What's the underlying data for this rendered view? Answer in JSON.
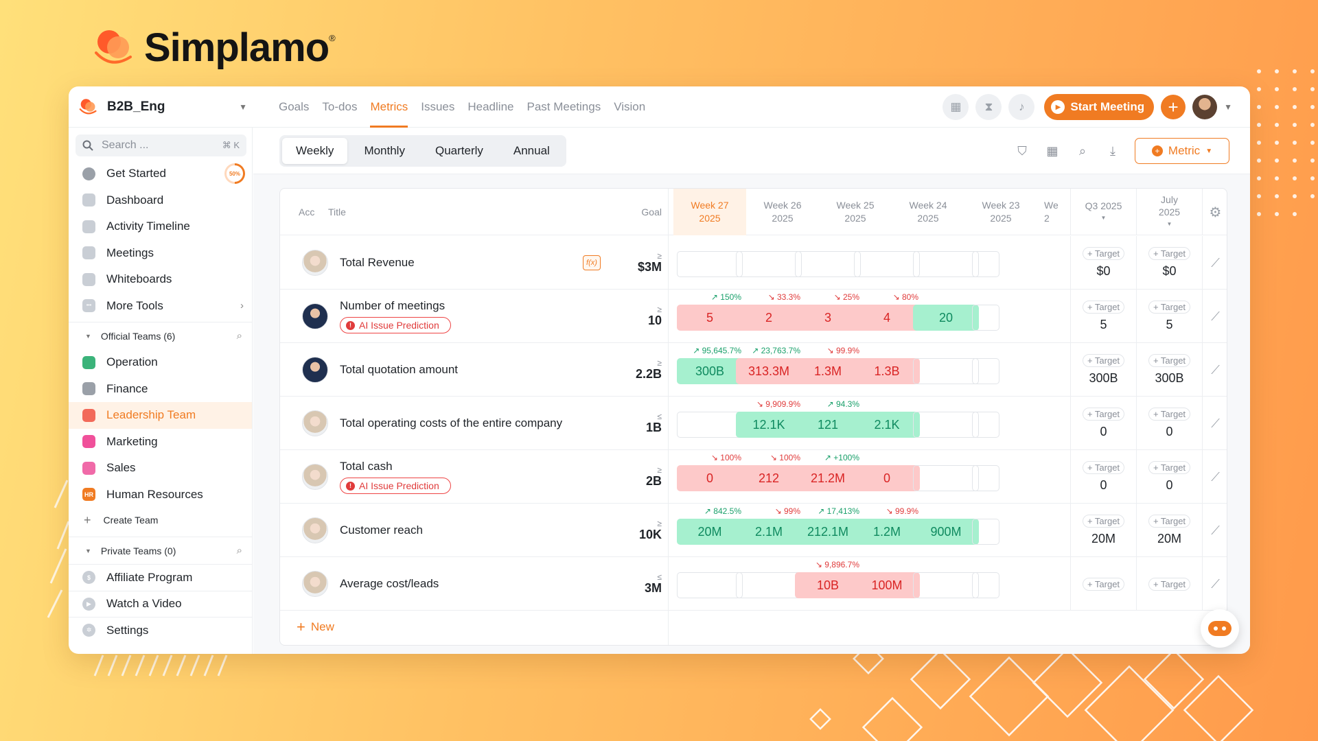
{
  "brand": {
    "name": "Simplamo",
    "reg": "®"
  },
  "workspace": {
    "name": "B2B_Eng"
  },
  "nav": [
    {
      "label": "Goals",
      "active": false
    },
    {
      "label": "To-dos",
      "active": false
    },
    {
      "label": "Metrics",
      "active": true
    },
    {
      "label": "Issues",
      "active": false
    },
    {
      "label": "Headline",
      "active": false
    },
    {
      "label": "Past Meetings",
      "active": false
    },
    {
      "label": "Vision",
      "active": false
    }
  ],
  "topbar": {
    "start_meeting": "Start Meeting",
    "plus": "+"
  },
  "sidebar": {
    "search_placeholder": "Search ...",
    "search_shortcut": "⌘ K",
    "get_started": "Get Started",
    "progress": "50%",
    "items": [
      "Dashboard",
      "Activity Timeline",
      "Meetings",
      "Whiteboards",
      "More Tools"
    ],
    "official_teams": "Official Teams (6)",
    "teams": [
      {
        "label": "Operation",
        "color": "#3bb37a",
        "icon": "leaf-icon"
      },
      {
        "label": "Finance",
        "color": "#9aa0a8",
        "icon": "dollar-icon"
      },
      {
        "label": "Leadership Team",
        "color": "#f26a5a",
        "icon": "chart-icon",
        "active": true
      },
      {
        "label": "Marketing",
        "color": "#f0509a",
        "icon": "target-icon"
      },
      {
        "label": "Sales",
        "color": "#f06aa8",
        "icon": "dollar-icon"
      },
      {
        "label": "Human Resources",
        "color": "#f07b22",
        "icon": "hr-icon",
        "badge": "HR"
      }
    ],
    "create_team": "Create Team",
    "private_teams": "Private Teams (0)",
    "affiliate": "Affiliate Program",
    "watch_video": "Watch a Video",
    "settings": "Settings"
  },
  "period_tabs": [
    {
      "label": "Weekly",
      "active": true
    },
    {
      "label": "Monthly",
      "active": false
    },
    {
      "label": "Quarterly",
      "active": false
    },
    {
      "label": "Annual",
      "active": false
    }
  ],
  "metric_button": "Metric",
  "table": {
    "headers": {
      "acc": "Acc",
      "title": "Title",
      "goal": "Goal"
    },
    "weeks": [
      {
        "label": "Week 27",
        "year": "2025",
        "current": true
      },
      {
        "label": "Week 26",
        "year": "2025"
      },
      {
        "label": "Week 25",
        "year": "2025"
      },
      {
        "label": "Week 24",
        "year": "2025"
      },
      {
        "label": "Week 23",
        "year": "2025"
      },
      {
        "label": "We",
        "year": "2"
      }
    ],
    "summary_headers": [
      {
        "line1": "Q3 2025",
        "line2": ""
      },
      {
        "line1": "July",
        "line2": "2025"
      }
    ],
    "target_label": "+ Target",
    "ai_label": "AI Issue Prediction",
    "rows": [
      {
        "title": "Total Revenue",
        "op": "≥",
        "goal": "$3M",
        "avatar": "f",
        "fx": true,
        "ai": false,
        "cells": [
          {
            "v": "",
            "s": ""
          },
          {
            "v": "",
            "s": ""
          },
          {
            "v": "",
            "s": ""
          },
          {
            "v": "",
            "s": ""
          },
          {
            "v": "",
            "s": ""
          }
        ],
        "trends": [
          "",
          "",
          "",
          "",
          ""
        ],
        "dirs": [
          "",
          "",
          "",
          "",
          ""
        ],
        "q": "$0",
        "m": "$0"
      },
      {
        "title": "Number of meetings",
        "op": "≥",
        "goal": "10",
        "avatar": "m",
        "ai": true,
        "cells": [
          {
            "v": "5",
            "s": "red"
          },
          {
            "v": "2",
            "s": "red"
          },
          {
            "v": "3",
            "s": "red"
          },
          {
            "v": "4",
            "s": "red"
          },
          {
            "v": "20",
            "s": "green"
          }
        ],
        "trends": [
          "150%",
          "33.3%",
          "25%",
          "80%",
          ""
        ],
        "dirs": [
          "up",
          "down",
          "down",
          "down",
          ""
        ],
        "q": "5",
        "m": "5"
      },
      {
        "title": "Total quotation amount",
        "op": "≥",
        "goal": "2.2B",
        "avatar": "m",
        "ai": false,
        "cells": [
          {
            "v": "300B",
            "s": "green"
          },
          {
            "v": "313.3M",
            "s": "red"
          },
          {
            "v": "1.3M",
            "s": "red"
          },
          {
            "v": "1.3B",
            "s": "red"
          },
          {
            "v": "",
            "s": ""
          }
        ],
        "trends": [
          "95,645.7%",
          "23,763.7%",
          "99.9%",
          "",
          ""
        ],
        "dirs": [
          "up",
          "up",
          "down",
          "",
          ""
        ],
        "q": "300B",
        "m": "300B"
      },
      {
        "title": "Total operating costs of the entire company",
        "op": "≤",
        "goal": "1B",
        "avatar": "f",
        "ai": false,
        "cells": [
          {
            "v": "",
            "s": ""
          },
          {
            "v": "12.1K",
            "s": "green"
          },
          {
            "v": "121",
            "s": "green"
          },
          {
            "v": "2.1K",
            "s": "green"
          },
          {
            "v": "",
            "s": ""
          }
        ],
        "trends": [
          "",
          "9,909.9%",
          "94.3%",
          "",
          ""
        ],
        "dirs": [
          "",
          "down",
          "up",
          "",
          ""
        ],
        "q": "0",
        "m": "0"
      },
      {
        "title": "Total cash",
        "op": "≥",
        "goal": "2B",
        "avatar": "f",
        "ai": true,
        "cells": [
          {
            "v": "0",
            "s": "red"
          },
          {
            "v": "212",
            "s": "red"
          },
          {
            "v": "21.2M",
            "s": "red"
          },
          {
            "v": "0",
            "s": "red"
          },
          {
            "v": "",
            "s": ""
          }
        ],
        "trends": [
          "100%",
          "100%",
          "+100%",
          "",
          ""
        ],
        "dirs": [
          "down",
          "down",
          "up",
          "",
          ""
        ],
        "q": "0",
        "m": "0"
      },
      {
        "title": "Customer reach",
        "op": "≥",
        "goal": "10K",
        "avatar": "f",
        "ai": false,
        "cells": [
          {
            "v": "20M",
            "s": "green"
          },
          {
            "v": "2.1M",
            "s": "green"
          },
          {
            "v": "212.1M",
            "s": "green"
          },
          {
            "v": "1.2M",
            "s": "green"
          },
          {
            "v": "900M",
            "s": "green"
          }
        ],
        "trends": [
          "842.5%",
          "99%",
          "17,413%",
          "99.9%",
          ""
        ],
        "dirs": [
          "up",
          "down",
          "up",
          "down",
          ""
        ],
        "q": "20M",
        "m": "20M"
      },
      {
        "title": "Average cost/leads",
        "op": "≤",
        "goal": "3M",
        "avatar": "f",
        "ai": false,
        "cells": [
          {
            "v": "",
            "s": ""
          },
          {
            "v": "",
            "s": ""
          },
          {
            "v": "10B",
            "s": "red"
          },
          {
            "v": "100M",
            "s": "red"
          },
          {
            "v": "",
            "s": ""
          }
        ],
        "trends": [
          "",
          "",
          "9,896.7%",
          "",
          ""
        ],
        "dirs": [
          "",
          "",
          "down",
          "",
          ""
        ],
        "q": "",
        "m": ""
      }
    ],
    "new_label": "New"
  }
}
